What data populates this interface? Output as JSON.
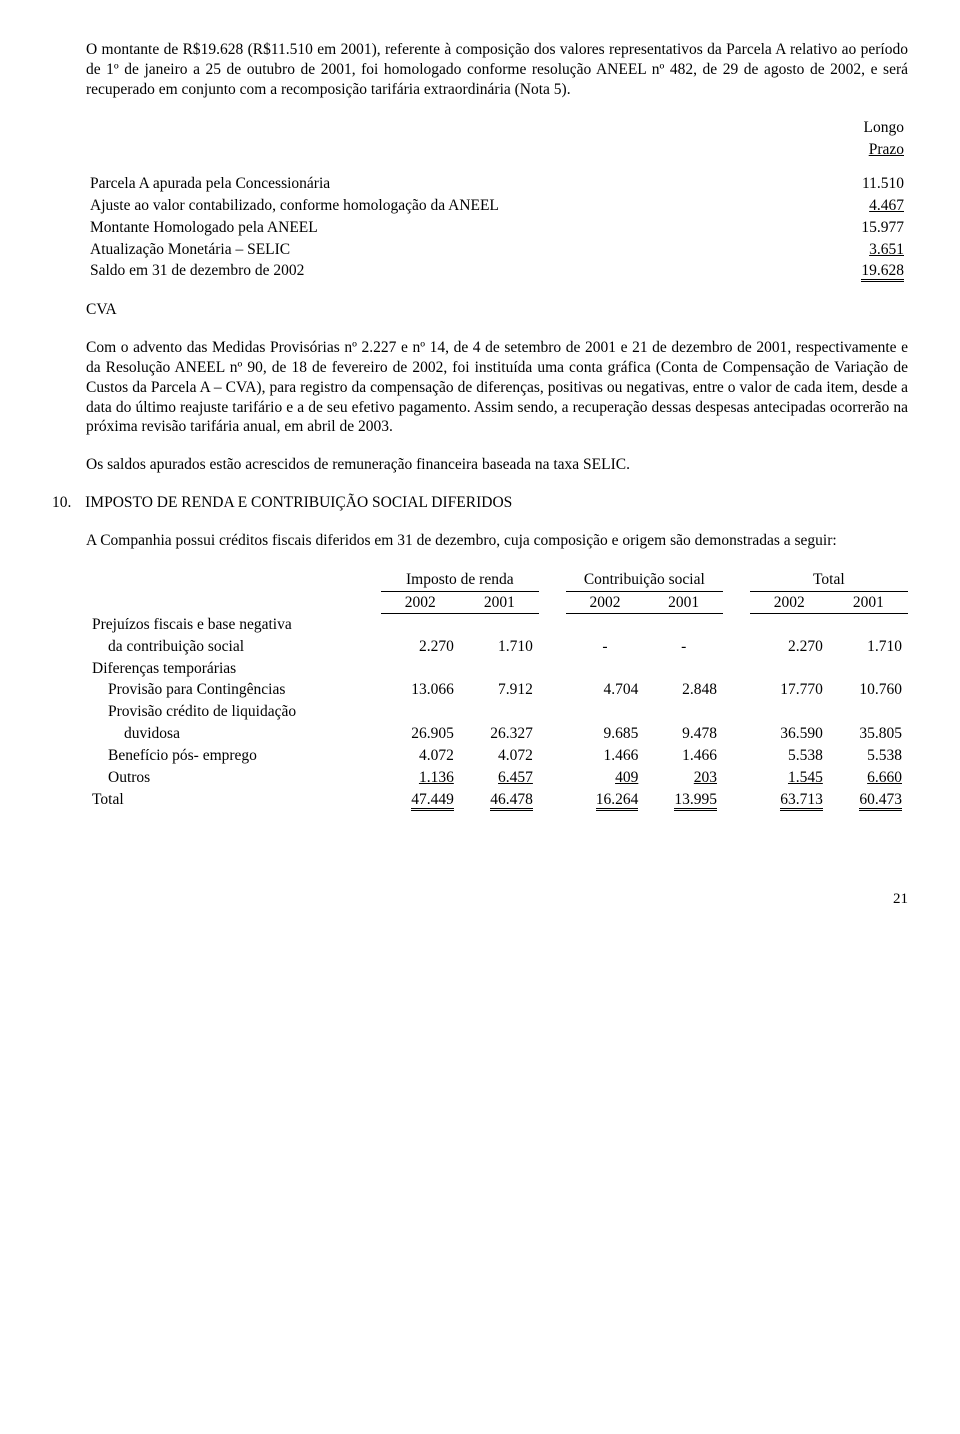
{
  "para1": "O montante de R$19.628 (R$11.510 em 2001), referente à composição dos valores representativos da Parcela A relativo ao período de 1º de janeiro a 25 de outubro de 2001, foi homologado conforme resolução ANEEL nº 482, de 29 de agosto de 2002, e será recuperado em conjunto com a recomposição tarifária extraordinária (Nota 5).",
  "table1": {
    "col_header1": "Longo",
    "col_header2": "Prazo",
    "rows": [
      {
        "label": "Parcela A apurada pela Concessionária",
        "val": "11.510"
      },
      {
        "label": "Ajuste ao valor contabilizado, conforme homologação da ANEEL",
        "val": "4.467",
        "und": true
      },
      {
        "label": "Montante Homologado pela ANEEL",
        "val": "15.977"
      },
      {
        "label": "Atualização Monetária – SELIC",
        "val": "3.651",
        "und": true
      },
      {
        "label": "Saldo em 31 de dezembro de 2002",
        "val": "19.628",
        "dbl": true
      }
    ]
  },
  "cva_label": "CVA",
  "para2": "Com o advento das Medidas Provisórias nº  2.227 e nº 14, de 4 de setembro de 2001 e 21 de dezembro de 2001, respectivamente e da Resolução ANEEL nº 90, de 18 de fevereiro de 2002, foi instituída uma conta gráfica (Conta de Compensação de Variação de Custos da Parcela A – CVA), para registro da compensação de diferenças, positivas ou negativas, entre o valor de cada item, desde a data do último reajuste tarifário e a de seu efetivo pagamento. Assim sendo, a recuperação dessas despesas antecipadas ocorrerão na próxima revisão tarifária anual, em abril de 2003.",
  "para3": "Os saldos apurados estão acrescidos de remuneração financeira baseada na taxa SELIC.",
  "section10_num": "10.",
  "section10_title": "IMPOSTO DE RENDA E CONTRIBUIÇÃO SOCIAL  DIFERIDOS",
  "para4": "A Companhia possui créditos fiscais diferidos em 31 de dezembro, cuja composição e origem são demonstradas a seguir:",
  "table2": {
    "group_headers": [
      "Imposto de renda",
      "Contribuição social",
      "Total"
    ],
    "year_headers": [
      "2002",
      "2001",
      "2002",
      "2001",
      "2002",
      "2001"
    ],
    "rows": [
      {
        "label": "Prejuízos fiscais e base negativa",
        "nobreak": true
      },
      {
        "label": "da contribuição  social",
        "indent": true,
        "vals": [
          "2.270",
          "1.710",
          "-",
          "-",
          "2.270",
          "1.710"
        ]
      },
      {
        "label": "Diferenças temporárias",
        "nobreak": true
      },
      {
        "label": "Provisão para Contingências",
        "indent": true,
        "vals": [
          "13.066",
          "7.912",
          "4.704",
          "2.848",
          "17.770",
          "10.760"
        ]
      },
      {
        "label": "Provisão crédito de liquidação",
        "indent": true,
        "nobreak": true
      },
      {
        "label": "duvidosa",
        "indent": 2,
        "vals": [
          "26.905",
          "26.327",
          "9.685",
          "9.478",
          "36.590",
          "35.805"
        ]
      },
      {
        "label": "Benefício pós- emprego",
        "indent": true,
        "vals": [
          "4.072",
          "4.072",
          "1.466",
          "1.466",
          "5.538",
          "5.538"
        ]
      },
      {
        "label": "Outros",
        "indent": true,
        "vals": [
          "1.136",
          "6.457",
          "409",
          "203",
          "1.545",
          "6.660"
        ],
        "und": true
      },
      {
        "label": "Total",
        "vals": [
          "47.449",
          "46.478",
          "16.264",
          "13.995",
          "63.713",
          "60.473"
        ],
        "dbl": true
      }
    ]
  },
  "page_number": "21"
}
